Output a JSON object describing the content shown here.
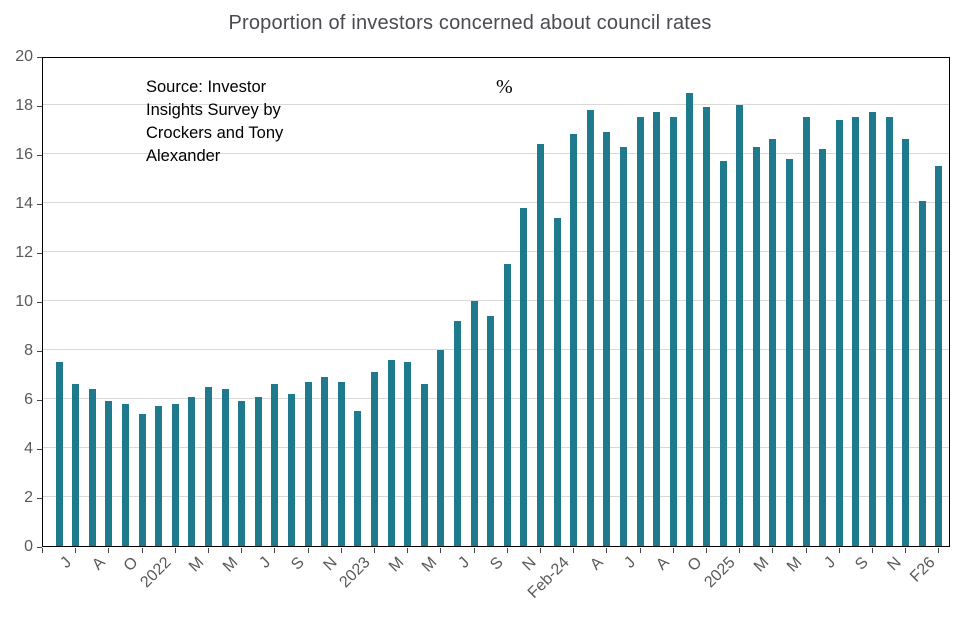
{
  "title": "Proportion of investors concerned about council rates",
  "source_note": {
    "lines": [
      "Source: Investor",
      "Insights Survey by",
      "Crockers and Tony",
      "Alexander"
    ]
  },
  "axis_unit_label": "%",
  "colors": {
    "bar": "#1e7a8c",
    "gridline": "#d9d9d9",
    "axis": "#000000",
    "tick_label": "#595959",
    "title": "#4a4a52",
    "source_text": "#000000"
  },
  "chart_data": {
    "type": "bar",
    "title": "Proportion of investors concerned about council rates",
    "xlabel": "",
    "ylabel": "%",
    "ylim": [
      0,
      20
    ],
    "ytick_interval": 2,
    "yticks": [
      0,
      2,
      4,
      6,
      8,
      10,
      12,
      14,
      16,
      18,
      20
    ],
    "grid": true,
    "legend": "none",
    "x_label_every": 2,
    "categories": [
      "J",
      "",
      "A",
      "",
      "O",
      "",
      "2022",
      "",
      "M",
      "",
      "M",
      "",
      "J",
      "",
      "S",
      "",
      "N",
      "",
      "2023",
      "",
      "M",
      "",
      "M",
      "",
      "J",
      "",
      "S",
      "",
      "N",
      "",
      "Feb-24",
      "",
      "A",
      "",
      "J",
      "",
      "A",
      "",
      "O",
      "",
      "2025",
      "",
      "M",
      "",
      "M",
      "",
      "J",
      "",
      "S",
      "",
      "N",
      "",
      "F26",
      ""
    ],
    "values": [
      7.5,
      6.6,
      6.4,
      5.9,
      5.8,
      5.4,
      5.7,
      5.8,
      6.1,
      6.5,
      6.4,
      5.9,
      6.1,
      6.6,
      6.2,
      6.7,
      6.9,
      6.7,
      5.5,
      7.1,
      7.6,
      7.5,
      6.6,
      8.0,
      9.2,
      10.0,
      9.4,
      11.5,
      13.8,
      16.4,
      13.4,
      16.8,
      17.8,
      16.9,
      16.3,
      17.5,
      17.7,
      17.5,
      18.5,
      17.9,
      15.7,
      18.0,
      16.3,
      16.6,
      15.8,
      17.5,
      16.2,
      17.4,
      17.5,
      17.7,
      17.5,
      16.6,
      14.1,
      15.5
    ]
  }
}
